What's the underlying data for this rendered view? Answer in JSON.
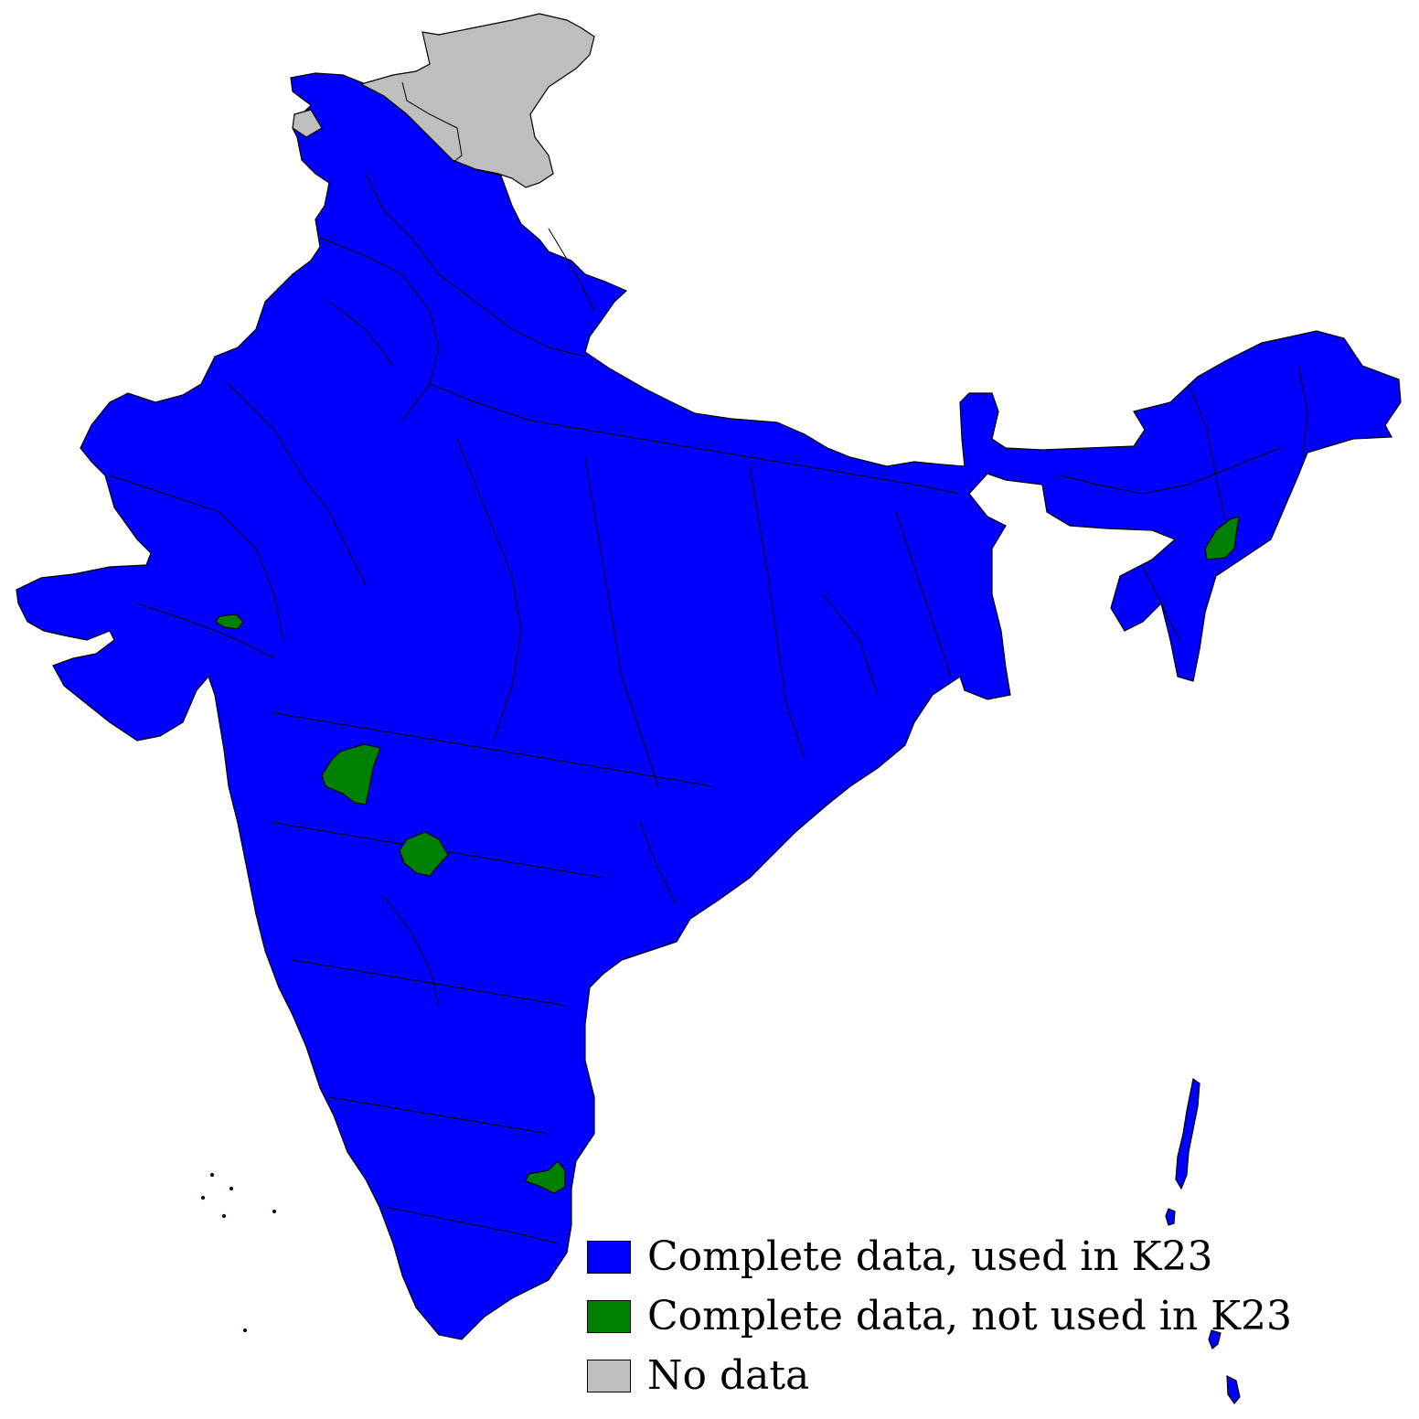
{
  "map": {
    "colors": {
      "used": "#0000ff",
      "not_used": "#008000",
      "no_data": "#bebebe",
      "border": "#000000"
    },
    "legend": [
      {
        "key": "used",
        "label": "Complete data, used in K23",
        "color": "#0000ff"
      },
      {
        "key": "not_used",
        "label": "Complete data, not used in K23",
        "color": "#008000"
      },
      {
        "key": "no_data",
        "label": "No data",
        "color": "#bebebe"
      }
    ]
  }
}
